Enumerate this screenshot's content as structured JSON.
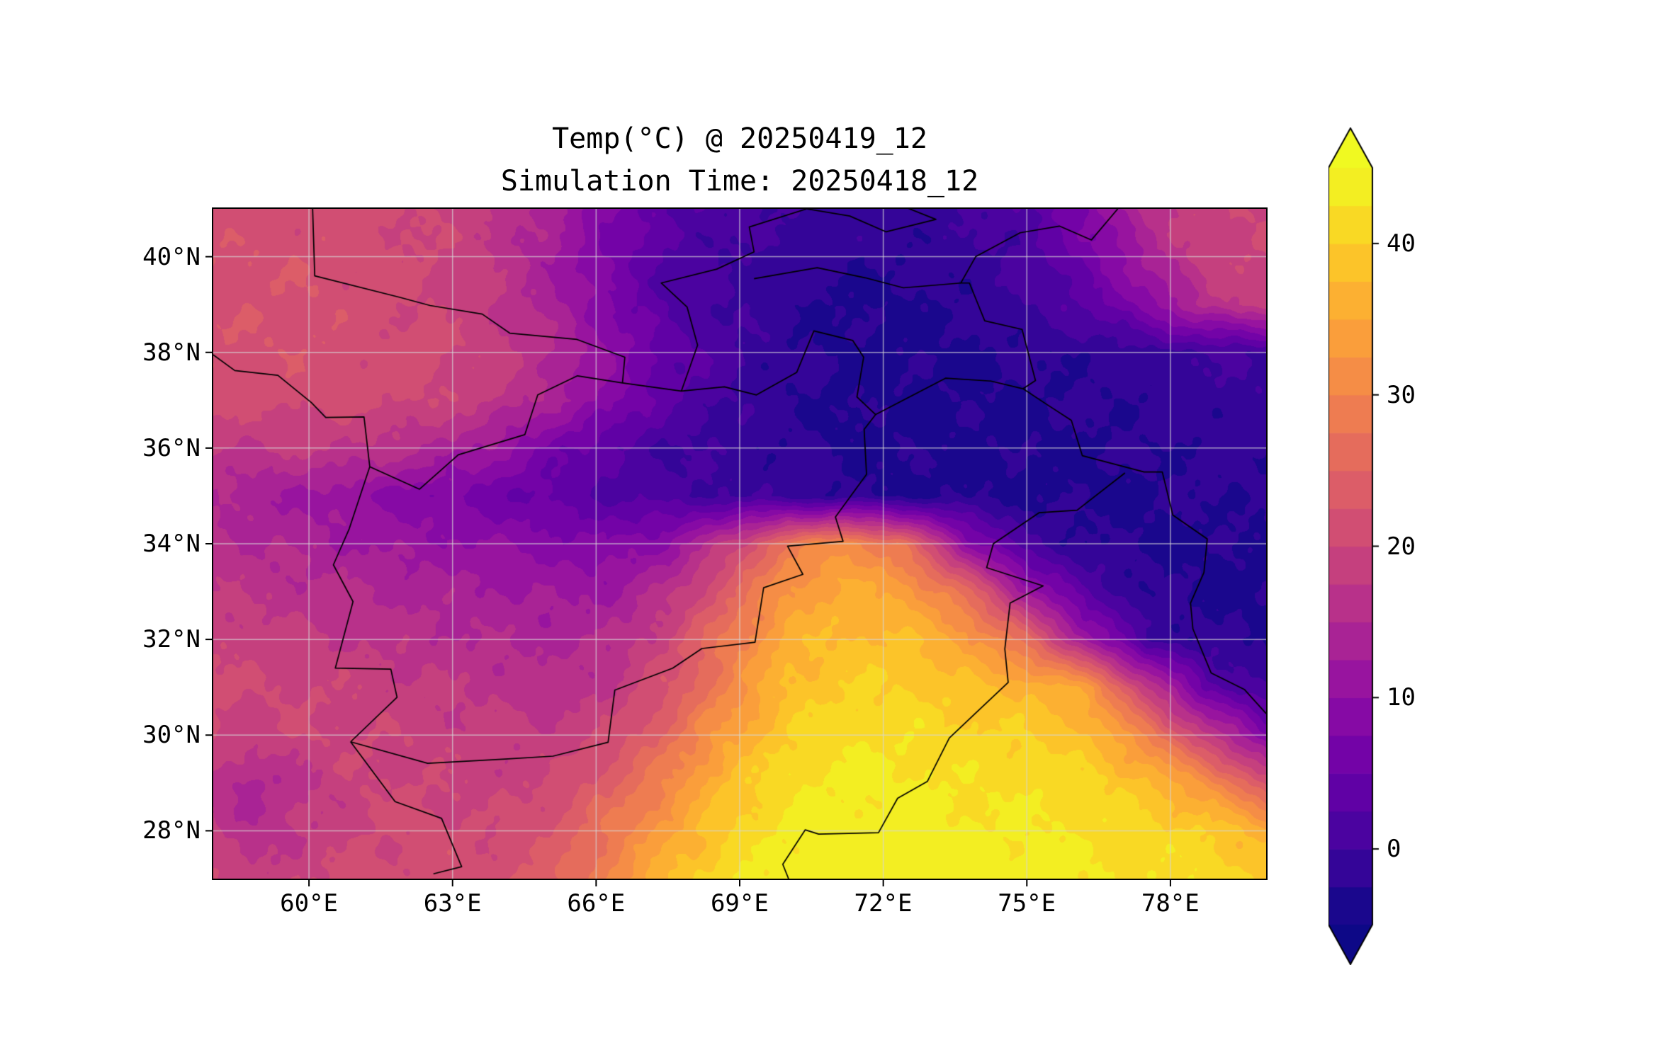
{
  "title": {
    "line1": "Temp(°C) @ 20250419_12",
    "line2": "Simulation Time: 20250418_12"
  },
  "axes": {
    "x_ticks": [
      {
        "value": 60,
        "label": "60°E"
      },
      {
        "value": 63,
        "label": "63°E"
      },
      {
        "value": 66,
        "label": "66°E"
      },
      {
        "value": 69,
        "label": "69°E"
      },
      {
        "value": 72,
        "label": "72°E"
      },
      {
        "value": 75,
        "label": "75°E"
      },
      {
        "value": 78,
        "label": "78°E"
      }
    ],
    "y_ticks": [
      {
        "value": 40,
        "label": "40°N"
      },
      {
        "value": 38,
        "label": "38°N"
      },
      {
        "value": 36,
        "label": "36°N"
      },
      {
        "value": 34,
        "label": "34°N"
      },
      {
        "value": 32,
        "label": "32°N"
      },
      {
        "value": 30,
        "label": "30°N"
      },
      {
        "value": 28,
        "label": "28°N"
      }
    ]
  },
  "colorbar": {
    "vmin": -5,
    "vmax": 45,
    "level_step": 2.5,
    "extend": "both",
    "ticks": [
      {
        "value": 40,
        "label": "40"
      },
      {
        "value": 30,
        "label": "30"
      },
      {
        "value": 20,
        "label": "20"
      },
      {
        "value": 10,
        "label": "10"
      },
      {
        "value": 0,
        "label": "0"
      }
    ]
  },
  "colormap": {
    "name": "plasma",
    "stops": [
      [
        0.0,
        "#0d0887"
      ],
      [
        0.1,
        "#41049d"
      ],
      [
        0.2,
        "#6a00a8"
      ],
      [
        0.3,
        "#8f0da4"
      ],
      [
        0.4,
        "#b12a90"
      ],
      [
        0.5,
        "#cc4778"
      ],
      [
        0.6,
        "#e16462"
      ],
      [
        0.7,
        "#f2844b"
      ],
      [
        0.8,
        "#fca636"
      ],
      [
        0.9,
        "#fcce25"
      ],
      [
        1.0,
        "#f0f921"
      ]
    ]
  },
  "chart_data": {
    "type": "heatmap",
    "title": "Temp(°C) @ 20250419_12",
    "subtitle": "Simulation Time: 20250418_12",
    "units": "°C",
    "extent": {
      "lon_min": 58,
      "lon_max": 80,
      "lat_min": 27,
      "lat_max": 41
    },
    "levels": {
      "min": -5,
      "max": 45,
      "step": 2.5
    },
    "grid_lons": [
      57.5,
      58.75,
      60,
      61.25,
      62.5,
      63.75,
      65,
      66.25,
      67.5,
      68.75,
      70,
      71.25,
      72.5,
      73.75,
      75,
      76.25,
      77.5,
      78.75,
      80
    ],
    "grid_lats": [
      41,
      40,
      39,
      38,
      37,
      36,
      35,
      34,
      33,
      32,
      31,
      30,
      29,
      28,
      27
    ],
    "temps_c": [
      [
        21,
        21,
        21,
        21,
        20,
        18,
        14,
        8,
        3,
        1,
        0,
        -1,
        -1,
        0,
        2,
        8,
        16,
        20,
        20
      ],
      [
        22,
        22,
        22,
        21,
        20,
        18,
        13,
        7,
        2,
        0,
        -1,
        -2,
        -2,
        -1,
        1,
        6,
        13,
        19,
        20
      ],
      [
        22,
        22,
        22,
        21,
        20,
        18,
        14,
        8,
        2,
        0,
        -2,
        -3,
        -3,
        -2,
        0,
        3,
        9,
        16,
        19
      ],
      [
        22,
        22,
        22,
        21,
        21,
        19,
        16,
        10,
        4,
        1,
        -2,
        -3,
        -3,
        -3,
        -2,
        -2,
        -1,
        0,
        0
      ],
      [
        21,
        21,
        21,
        21,
        20,
        18,
        14,
        9,
        3,
        0,
        -2,
        -3,
        -3,
        -3,
        -3,
        -2,
        -2,
        -1,
        -1
      ],
      [
        19,
        17,
        18,
        17,
        15,
        12,
        7,
        3,
        0,
        -1,
        -2,
        -3,
        -3,
        -3,
        -3,
        -3,
        -2,
        -2,
        -2
      ],
      [
        16,
        13,
        12,
        10,
        8,
        6,
        4,
        2,
        1,
        0,
        -1,
        -2,
        -3,
        -3,
        -3,
        -3,
        -3,
        -2,
        -2
      ],
      [
        17,
        15,
        14,
        12,
        11,
        10,
        9,
        8,
        10,
        18,
        28,
        32,
        26,
        10,
        0,
        -2,
        -3,
        -3,
        -3
      ],
      [
        18,
        17,
        16,
        15,
        14,
        13,
        12,
        12,
        16,
        24,
        33,
        36,
        34,
        26,
        12,
        2,
        -2,
        -3,
        -3
      ],
      [
        20,
        19,
        18,
        17,
        16,
        15,
        14,
        15,
        20,
        28,
        36,
        38,
        38,
        34,
        26,
        12,
        0,
        -2,
        -3
      ],
      [
        21,
        20,
        20,
        19,
        18,
        17,
        16,
        17,
        22,
        30,
        38,
        40,
        40,
        38,
        37,
        34,
        18,
        4,
        0
      ],
      [
        21,
        19,
        20,
        20,
        19,
        18,
        18,
        20,
        26,
        34,
        40,
        42,
        42,
        41,
        40,
        38,
        30,
        18,
        8
      ],
      [
        18,
        14,
        17,
        20,
        20,
        19,
        20,
        24,
        30,
        38,
        42,
        43,
        43,
        42,
        42,
        41,
        38,
        32,
        22
      ],
      [
        20,
        15,
        18,
        20,
        21,
        20,
        22,
        28,
        34,
        40,
        43,
        44,
        44,
        43,
        43,
        42,
        41,
        40,
        36
      ],
      [
        22,
        18,
        20,
        21,
        21,
        21,
        24,
        30,
        38,
        42,
        44,
        45,
        45,
        44,
        44,
        43,
        42,
        42,
        40
      ]
    ],
    "borders": [
      [
        [
          58,
          37.95
        ],
        [
          58.45,
          37.62
        ],
        [
          59.35,
          37.52
        ],
        [
          60.05,
          36.95
        ],
        [
          60.35,
          36.64
        ],
        [
          61.15,
          36.65
        ],
        [
          61.27,
          35.61
        ]
      ],
      [
        [
          61.27,
          35.61
        ],
        [
          60.84,
          34.31
        ],
        [
          60.51,
          33.56
        ],
        [
          60.92,
          32.79
        ],
        [
          60.55,
          31.4
        ],
        [
          61.71,
          31.38
        ],
        [
          61.84,
          30.79
        ],
        [
          60.87,
          29.86
        ]
      ],
      [
        [
          60.87,
          29.86
        ],
        [
          61.8,
          28.61
        ],
        [
          62.77,
          28.26
        ],
        [
          63.19,
          27.25
        ],
        [
          62.6,
          27.1
        ]
      ],
      [
        [
          61.27,
          35.61
        ],
        [
          62.31,
          35.14
        ],
        [
          63.12,
          35.86
        ],
        [
          64.51,
          36.28
        ],
        [
          64.78,
          37.11
        ],
        [
          65.61,
          37.51
        ],
        [
          66.55,
          37.36
        ],
        [
          67.78,
          37.19
        ],
        [
          68.68,
          37.28
        ],
        [
          69.35,
          37.11
        ],
        [
          70.19,
          37.58
        ],
        [
          70.55,
          38.45
        ],
        [
          71.36,
          38.25
        ],
        [
          71.59,
          37.9
        ],
        [
          71.45,
          37.07
        ],
        [
          71.84,
          36.7
        ],
        [
          73.3,
          37.46
        ],
        [
          74.25,
          37.4
        ],
        [
          74.92,
          37.24
        ]
      ],
      [
        [
          71.84,
          36.7
        ],
        [
          71.6,
          36.39
        ],
        [
          71.65,
          35.45
        ],
        [
          71.0,
          34.56
        ],
        [
          71.16,
          34.05
        ],
        [
          70.0,
          33.95
        ],
        [
          70.32,
          33.36
        ],
        [
          69.5,
          33.08
        ],
        [
          69.32,
          31.94
        ],
        [
          68.21,
          31.81
        ],
        [
          67.6,
          31.4
        ],
        [
          66.39,
          30.94
        ],
        [
          66.25,
          29.85
        ],
        [
          65.1,
          29.56
        ],
        [
          64.1,
          29.5
        ],
        [
          62.48,
          29.41
        ],
        [
          60.87,
          29.86
        ]
      ],
      [
        [
          77.05,
          35.48
        ],
        [
          76.05,
          34.7
        ],
        [
          75.26,
          34.65
        ],
        [
          74.3,
          34.0
        ],
        [
          74.16,
          33.5
        ],
        [
          75.34,
          33.12
        ],
        [
          74.65,
          32.76
        ],
        [
          74.54,
          31.8
        ],
        [
          74.61,
          31.1
        ],
        [
          73.9,
          30.43
        ],
        [
          73.38,
          29.94
        ],
        [
          72.92,
          29.03
        ],
        [
          72.3,
          28.68
        ],
        [
          71.9,
          27.96
        ],
        [
          70.65,
          27.93
        ],
        [
          70.37,
          28.02
        ],
        [
          69.9,
          27.3
        ],
        [
          70.06,
          26.9
        ]
      ],
      [
        [
          74.92,
          37.24
        ],
        [
          75.42,
          36.91
        ],
        [
          75.93,
          36.58
        ],
        [
          76.16,
          35.84
        ],
        [
          77.45,
          35.5
        ],
        [
          77.83,
          35.5
        ],
        [
          78.05,
          34.6
        ],
        [
          78.77,
          34.1
        ],
        [
          78.7,
          33.4
        ],
        [
          78.42,
          32.76
        ],
        [
          78.47,
          32.22
        ],
        [
          78.85,
          31.3
        ],
        [
          79.55,
          30.95
        ],
        [
          80.0,
          30.45
        ]
      ],
      [
        [
          74.92,
          37.24
        ],
        [
          75.18,
          37.41
        ],
        [
          74.9,
          38.48
        ],
        [
          74.12,
          38.66
        ],
        [
          73.8,
          39.45
        ],
        [
          73.62,
          39.45
        ],
        [
          73.93,
          40.0
        ],
        [
          74.86,
          40.5
        ],
        [
          75.68,
          40.64
        ],
        [
          76.35,
          40.35
        ],
        [
          76.9,
          41.0
        ]
      ],
      [
        [
          67.78,
          37.19
        ],
        [
          68.12,
          38.15
        ],
        [
          67.9,
          38.95
        ],
        [
          67.36,
          39.45
        ],
        [
          68.52,
          39.74
        ],
        [
          69.3,
          40.1
        ],
        [
          69.2,
          40.62
        ],
        [
          70.4,
          41.0
        ]
      ],
      [
        [
          69.3,
          39.54
        ],
        [
          70.62,
          39.77
        ],
        [
          71.62,
          39.56
        ],
        [
          72.42,
          39.35
        ],
        [
          73.62,
          39.45
        ]
      ],
      [
        [
          60.07,
          41.2
        ],
        [
          60.12,
          39.6
        ],
        [
          61.9,
          39.15
        ],
        [
          62.53,
          38.98
        ],
        [
          63.62,
          38.8
        ],
        [
          64.2,
          38.4
        ],
        [
          65.6,
          38.27
        ],
        [
          66.6,
          37.9
        ],
        [
          66.55,
          37.36
        ]
      ],
      [
        [
          70.4,
          41.0
        ],
        [
          71.3,
          40.85
        ],
        [
          72.06,
          40.52
        ],
        [
          73.1,
          40.78
        ],
        [
          71.8,
          41.3
        ]
      ]
    ]
  }
}
